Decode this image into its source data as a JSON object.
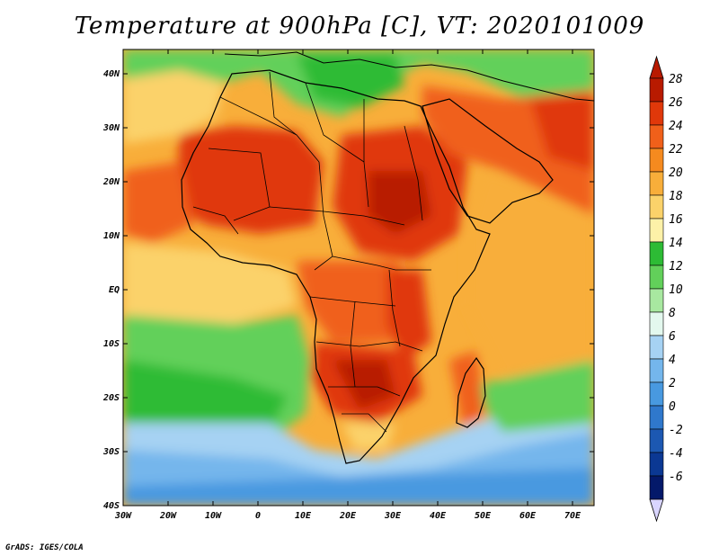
{
  "title": "Temperature at 900hPa [C], VT: 2020101009",
  "credit": "GrADS: IGES/COLA",
  "map": {
    "lat_labels": [
      "40N",
      "30N",
      "20N",
      "10N",
      "EQ",
      "10S",
      "20S",
      "30S",
      "40S"
    ],
    "lon_labels": [
      "30W",
      "20W",
      "10W",
      "0",
      "10E",
      "20E",
      "30E",
      "40E",
      "50E",
      "60E",
      "70E"
    ]
  },
  "colorbar": {
    "labels": [
      "28",
      "26",
      "24",
      "22",
      "20",
      "18",
      "16",
      "14",
      "12",
      "10",
      "8",
      "6",
      "4",
      "2",
      "0",
      "-2",
      "-4",
      "-6"
    ],
    "colors": [
      "#b81a00",
      "#e0380a",
      "#f0601a",
      "#f58a1f",
      "#f8ae3a",
      "#fbd26a",
      "#fdf1a8",
      "#2dbb35",
      "#62d05a",
      "#a8e8a0",
      "#e3f8ee",
      "#a6d2f3",
      "#74b6ec",
      "#4899e0",
      "#2f78cc",
      "#1c58b2",
      "#0b3893",
      "#04196a"
    ],
    "top_arrow_color": "#b81a00",
    "bottom_arrow_color": "#d9d5ff"
  }
}
